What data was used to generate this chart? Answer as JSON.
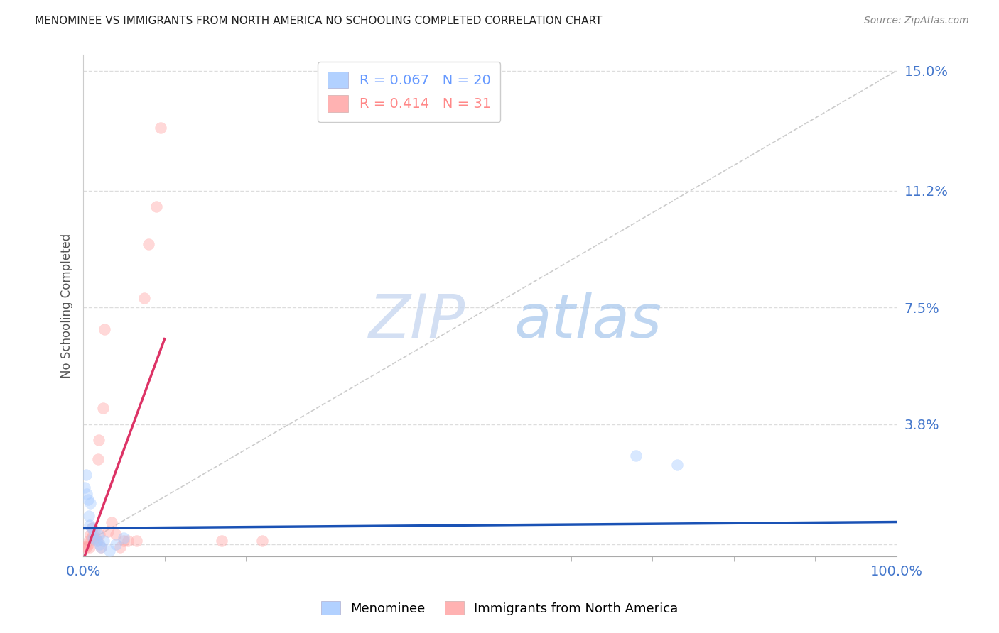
{
  "title": "MENOMINEE VS IMMIGRANTS FROM NORTH AMERICA NO SCHOOLING COMPLETED CORRELATION CHART",
  "source": "Source: ZipAtlas.com",
  "ylabel": "No Schooling Completed",
  "watermark_zip": "ZIP",
  "watermark_atlas": "atlas",
  "xlim": [
    0.0,
    1.0
  ],
  "ylim": [
    -0.004,
    0.155
  ],
  "yticks": [
    0.0,
    0.038,
    0.075,
    0.112,
    0.15
  ],
  "ytick_labels": [
    "",
    "3.8%",
    "7.5%",
    "11.2%",
    "15.0%"
  ],
  "xtick_labels": [
    "0.0%",
    "100.0%"
  ],
  "xticks": [
    0.0,
    1.0
  ],
  "legend_entries": [
    {
      "label": "R = 0.067   N = 20",
      "color": "#6699ff"
    },
    {
      "label": "R = 0.414   N = 31",
      "color": "#ff8888"
    }
  ],
  "diagonal_line": {
    "x": [
      0.0,
      1.0
    ],
    "y": [
      0.0,
      0.15
    ],
    "color": "#cccccc",
    "linestyle": "dashed"
  },
  "blue_scatter_x": [
    0.002,
    0.003,
    0.004,
    0.006,
    0.007,
    0.008,
    0.009,
    0.01,
    0.012,
    0.014,
    0.016,
    0.018,
    0.02,
    0.022,
    0.025,
    0.032,
    0.04,
    0.05,
    0.68,
    0.73
  ],
  "blue_scatter_y": [
    0.018,
    0.022,
    0.016,
    0.014,
    0.009,
    0.006,
    0.013,
    0.005,
    0.002,
    0.004,
    0.001,
    0.003,
    0.0,
    -0.001,
    0.001,
    -0.002,
    0.0,
    0.002,
    0.028,
    0.025
  ],
  "pink_scatter_x": [
    0.002,
    0.004,
    0.006,
    0.007,
    0.008,
    0.009,
    0.01,
    0.011,
    0.012,
    0.013,
    0.015,
    0.017,
    0.018,
    0.019,
    0.02,
    0.022,
    0.024,
    0.026,
    0.03,
    0.035,
    0.04,
    0.045,
    0.05,
    0.055,
    0.065,
    0.075,
    0.08,
    0.09,
    0.095,
    0.17,
    0.22
  ],
  "pink_scatter_y": [
    -0.001,
    -0.001,
    0.0,
    0.001,
    -0.001,
    0.003,
    0.002,
    0.005,
    0.003,
    0.002,
    0.002,
    0.001,
    0.027,
    0.033,
    0.003,
    -0.001,
    0.043,
    0.068,
    0.004,
    0.007,
    0.003,
    -0.001,
    0.001,
    0.001,
    0.001,
    0.078,
    0.095,
    0.107,
    0.132,
    0.001,
    0.001
  ],
  "blue_line_x": [
    0.0,
    1.0
  ],
  "blue_line_y": [
    0.005,
    0.007
  ],
  "pink_line_x": [
    0.0,
    0.1
  ],
  "pink_line_y": [
    -0.005,
    0.065
  ],
  "background_color": "#ffffff",
  "grid_color": "#dddddd",
  "scatter_size": 130,
  "scatter_alpha": 0.45,
  "blue_color": "#aaccff",
  "pink_color": "#ffaaaa",
  "blue_line_color": "#1a52b5",
  "pink_line_color": "#dd3366"
}
